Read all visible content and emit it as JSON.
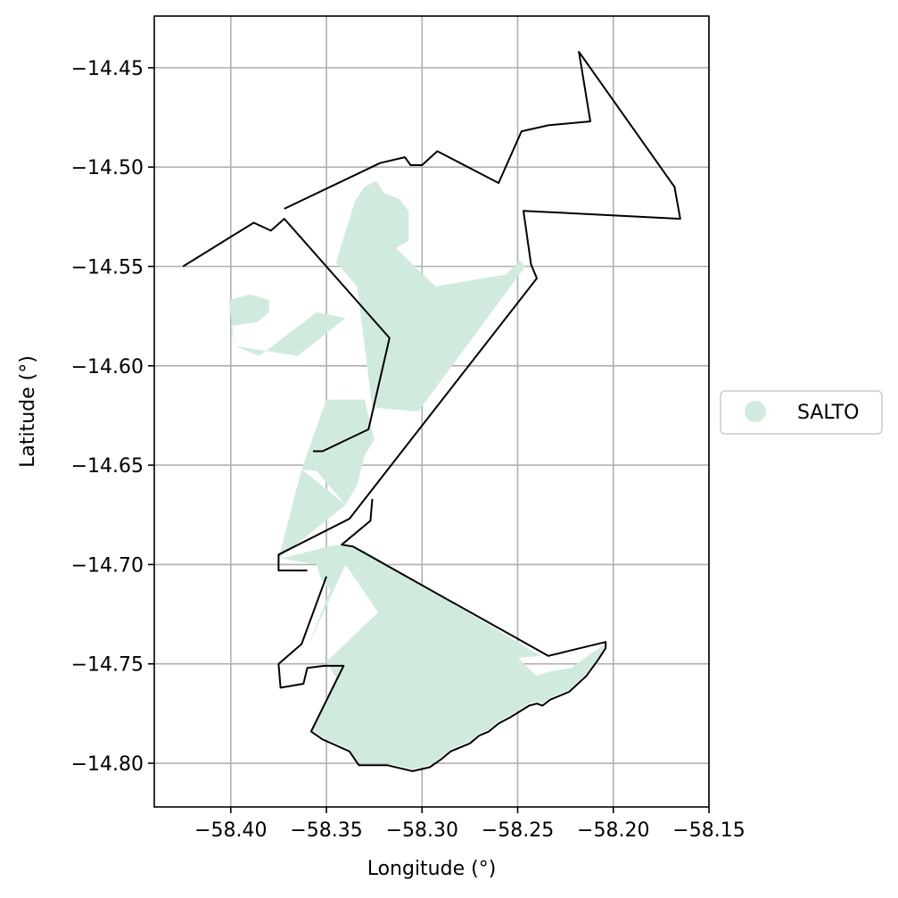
{
  "chart_data": {
    "type": "map",
    "xlabel": "Longitude (°)",
    "ylabel": "Latitude (°)",
    "xlim": [
      -58.44,
      -58.15
    ],
    "ylim": [
      -14.822,
      -14.424
    ],
    "xticks": [
      -58.4,
      -58.35,
      -58.3,
      -58.25,
      -58.2,
      -58.15
    ],
    "xtick_labels": [
      "−58.40",
      "−58.35",
      "−58.30",
      "−58.25",
      "−58.20",
      "−58.15"
    ],
    "yticks": [
      -14.45,
      -14.5,
      -14.55,
      -14.6,
      -14.65,
      -14.7,
      -14.75,
      -14.8
    ],
    "ytick_labels": [
      "−14.45",
      "−14.50",
      "−14.55",
      "−14.60",
      "−14.65",
      "−14.70",
      "−14.75",
      "−14.80"
    ],
    "grid": true,
    "legend": {
      "placement": "right",
      "entries": [
        {
          "label": "SALTO",
          "color": "#d0ebde"
        }
      ]
    },
    "layers": [
      {
        "name": "SALTO",
        "color": "#d0ebde",
        "polygons": [
          [
            [
              -58.335,
              -14.517
            ],
            [
              -58.33,
              -14.51
            ],
            [
              -58.324,
              -14.507
            ],
            [
              -58.32,
              -14.513
            ],
            [
              -58.312,
              -14.516
            ],
            [
              -58.307,
              -14.522
            ],
            [
              -58.307,
              -14.537
            ],
            [
              -58.314,
              -14.541
            ],
            [
              -58.32,
              -14.535
            ],
            [
              -58.293,
              -14.56
            ],
            [
              -58.28,
              -14.558
            ],
            [
              -58.268,
              -14.556
            ],
            [
              -58.256,
              -14.554
            ],
            [
              -58.249,
              -14.547
            ],
            [
              -58.246,
              -14.55
            ],
            [
              -58.302,
              -14.623
            ],
            [
              -58.326,
              -14.621
            ],
            [
              -58.334,
              -14.56
            ],
            [
              -58.345,
              -14.548
            ]
          ],
          [
            [
              -58.401,
              -14.567
            ],
            [
              -58.39,
              -14.564
            ],
            [
              -58.38,
              -14.567
            ],
            [
              -58.38,
              -14.573
            ],
            [
              -58.386,
              -14.578
            ],
            [
              -58.4,
              -14.58
            ],
            [
              -58.398,
              -14.59
            ]
          ],
          [
            [
              -58.398,
              -14.59
            ],
            [
              -58.385,
              -14.595
            ],
            [
              -58.355,
              -14.573
            ],
            [
              -58.34,
              -14.576
            ],
            [
              -58.365,
              -14.595
            ]
          ],
          [
            [
              -58.35,
              -14.617
            ],
            [
              -58.33,
              -14.617
            ],
            [
              -58.325,
              -14.637
            ],
            [
              -58.33,
              -14.645
            ],
            [
              -58.334,
              -14.66
            ],
            [
              -58.34,
              -14.67
            ],
            [
              -58.355,
              -14.653
            ],
            [
              -58.363,
              -14.652
            ]
          ],
          [
            [
              -58.363,
              -14.652
            ],
            [
              -58.34,
              -14.67
            ],
            [
              -58.375,
              -14.697
            ]
          ],
          [
            [
              -58.374,
              -14.697
            ],
            [
              -58.355,
              -14.7
            ],
            [
              -58.353,
              -14.707
            ],
            [
              -58.348,
              -14.713
            ],
            [
              -58.36,
              -14.742
            ],
            [
              -58.34,
              -14.7
            ],
            [
              -58.323,
              -14.724
            ],
            [
              -58.35,
              -14.749
            ],
            [
              -58.345,
              -14.757
            ],
            [
              -58.358,
              -14.783
            ],
            [
              -58.352,
              -14.787
            ],
            [
              -58.345,
              -14.79
            ],
            [
              -58.338,
              -14.793
            ],
            [
              -58.333,
              -14.8
            ],
            [
              -58.318,
              -14.8
            ],
            [
              -58.305,
              -14.803
            ],
            [
              -58.296,
              -14.801
            ],
            [
              -58.29,
              -14.797
            ],
            [
              -58.285,
              -14.793
            ],
            [
              -58.275,
              -14.789
            ],
            [
              -58.27,
              -14.785
            ],
            [
              -58.265,
              -14.783
            ],
            [
              -58.26,
              -14.779
            ],
            [
              -58.254,
              -14.776
            ],
            [
              -58.249,
              -14.773
            ],
            [
              -58.244,
              -14.77
            ],
            [
              -58.24,
              -14.769
            ],
            [
              -58.237,
              -14.77
            ],
            [
              -58.233,
              -14.767
            ],
            [
              -58.223,
              -14.763
            ],
            [
              -58.214,
              -14.755
            ],
            [
              -58.208,
              -14.747
            ],
            [
              -58.204,
              -14.74
            ],
            [
              -58.212,
              -14.745
            ],
            [
              -58.222,
              -14.752
            ],
            [
              -58.234,
              -14.754
            ],
            [
              -58.24,
              -14.756
            ],
            [
              -58.25,
              -14.747
            ],
            [
              -58.238,
              -14.746
            ],
            [
              -58.33,
              -14.693
            ],
            [
              -58.345,
              -14.69
            ]
          ]
        ]
      },
      {
        "name": "outline",
        "color": "#000000",
        "polygons": [
          [
            [
              -58.425,
              -14.55
            ],
            [
              -58.388,
              -14.528
            ],
            [
              -58.379,
              -14.532
            ],
            [
              -58.372,
              -14.526
            ],
            [
              -58.317,
              -14.586
            ],
            [
              -58.328,
              -14.632
            ],
            [
              -58.352,
              -14.643
            ],
            [
              -58.357,
              -14.643
            ]
          ],
          [
            [
              -58.372,
              -14.521
            ],
            [
              -58.322,
              -14.498
            ],
            [
              -58.309,
              -14.495
            ],
            [
              -58.306,
              -14.499
            ],
            [
              -58.3,
              -14.499
            ],
            [
              -58.292,
              -14.492
            ],
            [
              -58.26,
              -14.508
            ],
            [
              -58.248,
              -14.482
            ],
            [
              -58.234,
              -14.479
            ],
            [
              -58.212,
              -14.477
            ],
            [
              -58.218,
              -14.442
            ],
            [
              -58.168,
              -14.51
            ],
            [
              -58.165,
              -14.526
            ],
            [
              -58.247,
              -14.522
            ],
            [
              -58.243,
              -14.549
            ],
            [
              -58.24,
              -14.556
            ],
            [
              -58.338,
              -14.677
            ],
            [
              -58.375,
              -14.695
            ],
            [
              -58.375,
              -14.703
            ],
            [
              -58.36,
              -14.703
            ]
          ],
          [
            [
              -58.326,
              -14.667
            ],
            [
              -58.327,
              -14.678
            ],
            [
              -58.342,
              -14.69
            ],
            [
              -58.336,
              -14.691
            ],
            [
              -58.234,
              -14.746
            ],
            [
              -58.204,
              -14.739
            ],
            [
              -58.204,
              -14.742
            ],
            [
              -58.208,
              -14.748
            ],
            [
              -58.214,
              -14.756
            ],
            [
              -58.223,
              -14.764
            ],
            [
              -58.233,
              -14.768
            ],
            [
              -58.237,
              -14.771
            ],
            [
              -58.24,
              -14.77
            ],
            [
              -58.244,
              -14.771
            ],
            [
              -58.249,
              -14.774
            ],
            [
              -58.254,
              -14.777
            ],
            [
              -58.26,
              -14.78
            ],
            [
              -58.265,
              -14.784
            ],
            [
              -58.27,
              -14.786
            ],
            [
              -58.275,
              -14.79
            ],
            [
              -58.285,
              -14.794
            ],
            [
              -58.29,
              -14.798
            ],
            [
              -58.296,
              -14.802
            ],
            [
              -58.305,
              -14.804
            ],
            [
              -58.318,
              -14.801
            ],
            [
              -58.333,
              -14.801
            ],
            [
              -58.338,
              -14.794
            ],
            [
              -58.345,
              -14.791
            ],
            [
              -58.352,
              -14.788
            ],
            [
              -58.358,
              -14.784
            ],
            [
              -58.341,
              -14.751
            ],
            [
              -58.351,
              -14.751
            ],
            [
              -58.36,
              -14.752
            ],
            [
              -58.362,
              -14.76
            ],
            [
              -58.374,
              -14.762
            ],
            [
              -58.375,
              -14.75
            ],
            [
              -58.363,
              -14.74
            ],
            [
              -58.35,
              -14.706
            ]
          ]
        ]
      }
    ]
  }
}
